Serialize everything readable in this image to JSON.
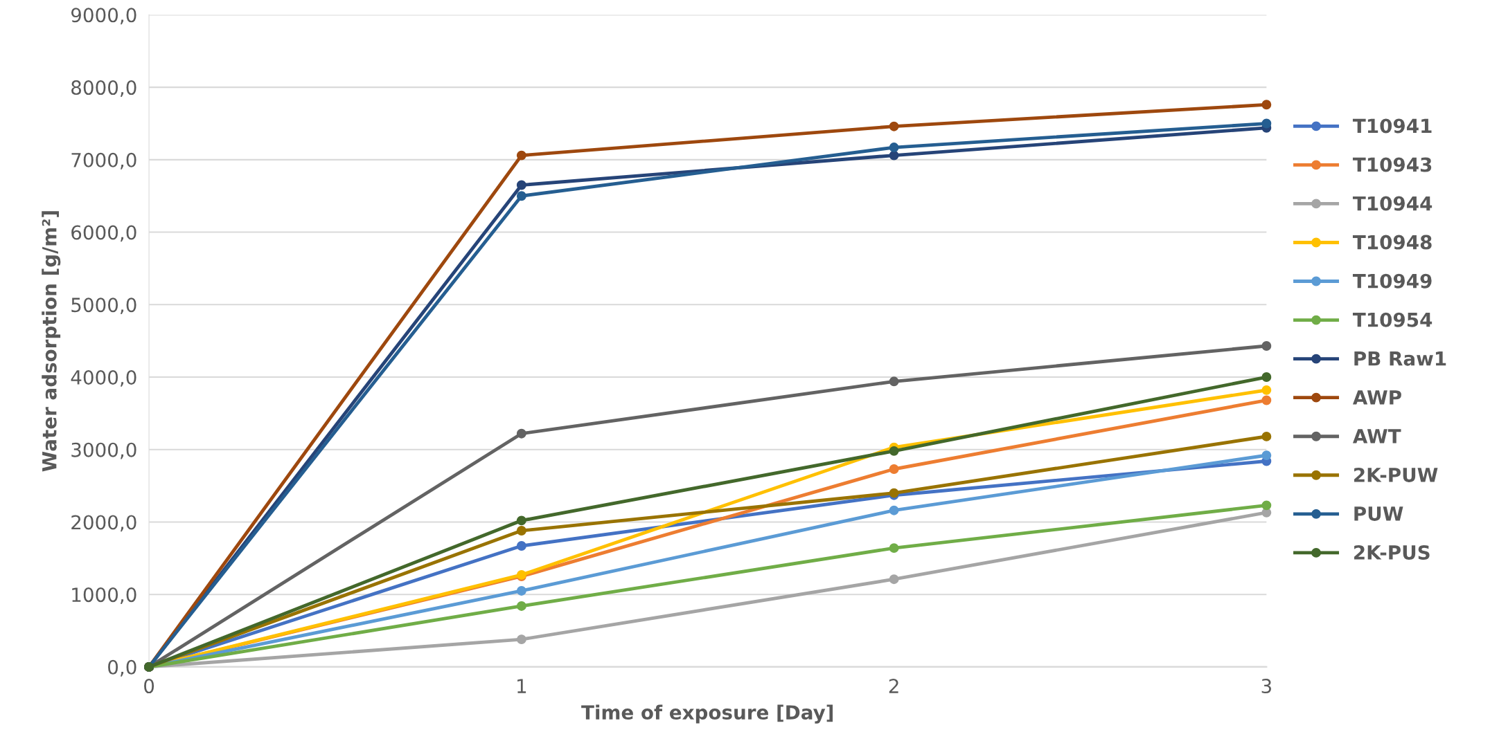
{
  "chart_data": {
    "type": "line",
    "xlabel": "Time of exposure [Day]",
    "ylabel": "Water adsorption [g/m²]",
    "x": [
      0,
      1,
      2,
      3
    ],
    "xlim": [
      0,
      3
    ],
    "xticks": [
      0,
      1,
      2,
      3
    ],
    "ylim": [
      0,
      9000
    ],
    "yticks": [
      {
        "value": 0,
        "label": "0,0"
      },
      {
        "value": 1000,
        "label": "1000,0"
      },
      {
        "value": 2000,
        "label": "2000,0"
      },
      {
        "value": 3000,
        "label": "3000,0"
      },
      {
        "value": 4000,
        "label": "4000,0"
      },
      {
        "value": 5000,
        "label": "5000,0"
      },
      {
        "value": 6000,
        "label": "6000,0"
      },
      {
        "value": 7000,
        "label": "7000,0"
      },
      {
        "value": 8000,
        "label": "8000,0"
      },
      {
        "value": 9000,
        "label": "9000,0"
      }
    ],
    "grid": "y",
    "legend": "right",
    "marker": "circle",
    "line_style": "solid",
    "series": [
      {
        "name": "T10941",
        "color": "#4472c4",
        "values": [
          0,
          1670,
          2370,
          2840
        ]
      },
      {
        "name": "T10943",
        "color": "#ed7d31",
        "values": [
          0,
          1250,
          2730,
          3680
        ]
      },
      {
        "name": "T10944",
        "color": "#a5a5a5",
        "values": [
          0,
          380,
          1210,
          2130
        ]
      },
      {
        "name": "T10948",
        "color": "#ffc000",
        "values": [
          0,
          1270,
          3030,
          3820
        ]
      },
      {
        "name": "T10949",
        "color": "#5b9bd5",
        "values": [
          0,
          1050,
          2160,
          2920
        ]
      },
      {
        "name": "T10954",
        "color": "#70ad47",
        "values": [
          0,
          840,
          1640,
          2230
        ]
      },
      {
        "name": "PB Raw1",
        "color": "#264478",
        "values": [
          0,
          6650,
          7060,
          7440
        ]
      },
      {
        "name": "AWP",
        "color": "#9e480e",
        "values": [
          0,
          7060,
          7460,
          7760
        ]
      },
      {
        "name": "AWT",
        "color": "#636363",
        "values": [
          0,
          3220,
          3940,
          4430
        ]
      },
      {
        "name": "2K-PUW",
        "color": "#997300",
        "values": [
          0,
          1880,
          2400,
          3180
        ]
      },
      {
        "name": "PUW",
        "color": "#255e91",
        "values": [
          0,
          6500,
          7170,
          7500
        ]
      },
      {
        "name": "2K-PUS",
        "color": "#43682b",
        "values": [
          0,
          2020,
          2980,
          4000
        ]
      }
    ]
  }
}
